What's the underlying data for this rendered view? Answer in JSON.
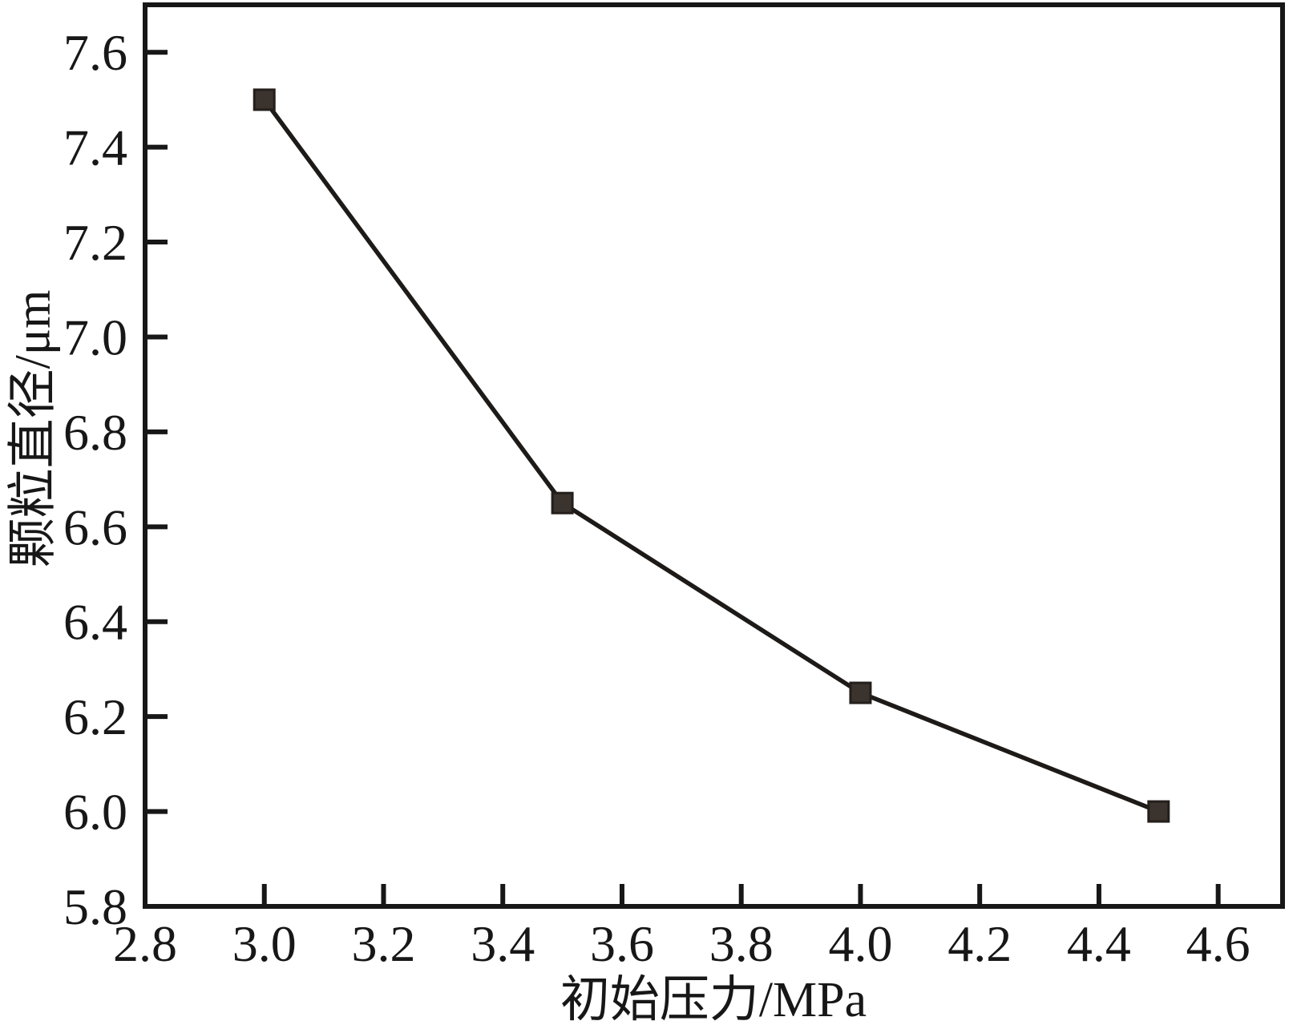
{
  "chart_data": {
    "type": "line",
    "title": "",
    "xlabel": "初始压力/MPa",
    "ylabel": "颗粒直径/μm",
    "x": [
      3.0,
      3.5,
      4.0,
      4.5
    ],
    "y": [
      7.5,
      6.65,
      6.25,
      6.0
    ],
    "xlim": [
      2.8,
      4.708
    ],
    "ylim": [
      5.8,
      7.7
    ],
    "xticks": [
      2.8,
      3.0,
      3.2,
      3.4,
      3.6,
      3.8,
      4.0,
      4.2,
      4.4,
      4.6
    ],
    "yticks": [
      5.8,
      6.0,
      6.2,
      6.4,
      6.6,
      6.8,
      7.0,
      7.2,
      7.4,
      7.6
    ],
    "grid": false,
    "legend": null,
    "marker": "square",
    "series_count": 1,
    "colors": {
      "axis": "#171717",
      "line": "#1d1a18",
      "marker_fill": "#3b332d",
      "marker_edge": "#241f1c",
      "text": "#171717"
    }
  }
}
